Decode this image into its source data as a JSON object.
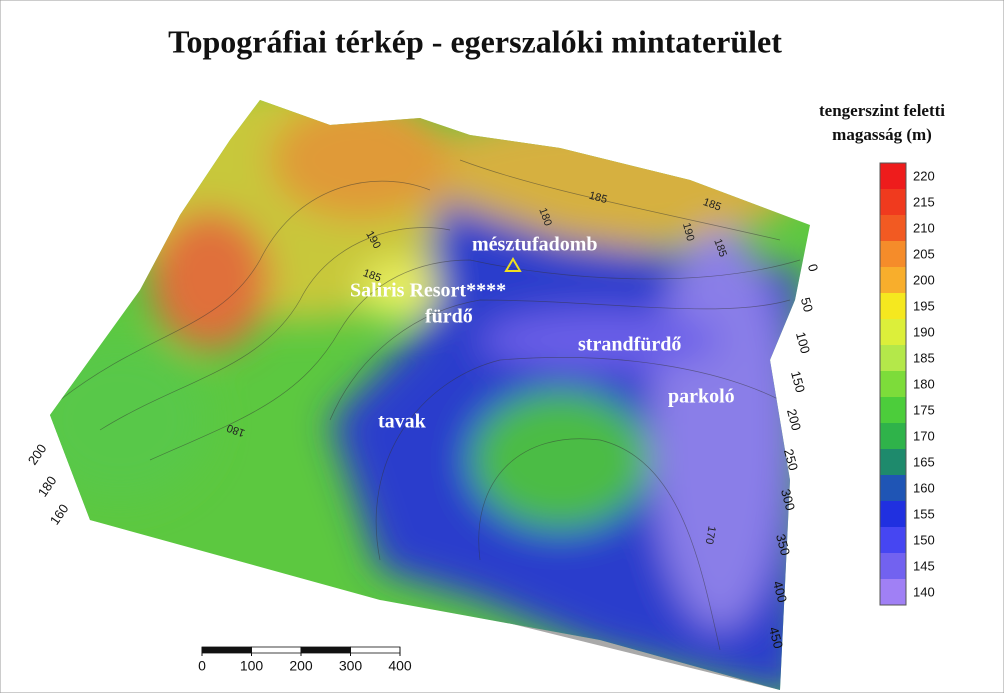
{
  "title": "Topográfiai térkép - egerszalóki mintaterület",
  "legend": {
    "title_lines": [
      "tengerszint feletti",
      "magasság (m)"
    ],
    "levels": [
      220,
      215,
      210,
      205,
      200,
      195,
      190,
      185,
      180,
      175,
      170,
      165,
      160,
      155,
      150,
      145,
      140
    ],
    "colors": [
      "#ee1c1c",
      "#f03a1e",
      "#f25a22",
      "#f58c2a",
      "#f8ae2c",
      "#f5e81f",
      "#dcef3a",
      "#b4e84a",
      "#7ddc3a",
      "#4ccd3b",
      "#2fb34a",
      "#1e8a6c",
      "#1f55b5",
      "#2030e0",
      "#4646f2",
      "#7262f0",
      "#a080f5"
    ]
  },
  "places": [
    "mésztufadomb",
    "Saliris Resort****",
    "fürdő",
    "strandfürdő",
    "parkoló",
    "tavak"
  ],
  "right_axis_ticks": [
    0,
    50,
    100,
    150,
    200,
    250,
    300,
    350,
    400,
    450
  ],
  "left_axis_ticks": [
    200,
    180,
    160
  ],
  "scale_bar_ticks": [
    0,
    100,
    200,
    300,
    400
  ],
  "contour_labels": [
    "185",
    "185",
    "180",
    "190",
    "185",
    "190",
    "185",
    "180",
    "170"
  ]
}
